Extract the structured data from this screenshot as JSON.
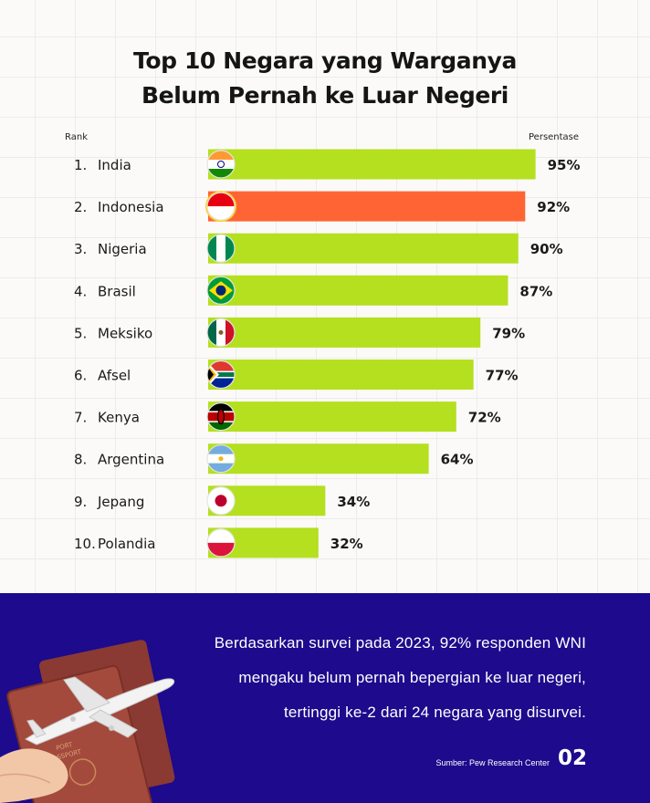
{
  "title_line1": "Top 10 Negara yang Warganya",
  "title_line2": "Belum Pernah ke Luar Negeri",
  "rank_header": "Rank",
  "pct_header": "Persentase",
  "chart_data": {
    "type": "bar",
    "orientation": "horizontal",
    "ranks": [
      "1.",
      "2.",
      "3.",
      "4.",
      "5.",
      "6.",
      "7.",
      "8.",
      "9.",
      "10."
    ],
    "categories": [
      "India",
      "Indonesia",
      "Nigeria",
      "Brasil",
      "Meksiko",
      "Afsel",
      "Kenya",
      "Argentina",
      "Jepang",
      "Polandia"
    ],
    "values": [
      95,
      92,
      90,
      87,
      79,
      77,
      72,
      64,
      34,
      32
    ],
    "value_labels": [
      "95%",
      "92%",
      "90%",
      "87%",
      "79%",
      "77%",
      "72%",
      "64%",
      "34%",
      "32%"
    ],
    "unit": "%",
    "bar_color": "#b4e01f",
    "highlight_color": "#ff6534",
    "highlight_category": "Indonesia",
    "flags": [
      "india-flag-icon",
      "indonesia-flag-icon",
      "nigeria-flag-icon",
      "brazil-flag-icon",
      "mexico-flag-icon",
      "south-africa-flag-icon",
      "kenya-flag-icon",
      "argentina-flag-icon",
      "japan-flag-icon",
      "poland-flag-icon"
    ]
  },
  "description_lines": [
    "Berdasarkan survei pada 2023, 92% responden WNI",
    "mengaku belum pernah bepergian ke luar negeri,",
    "tertinggi ke-2 dari 24 negara yang disurvei."
  ],
  "source": "Sumber: Pew Research Center",
  "page_number": "02",
  "passport_text": [
    "PORT",
    "PASSPORT"
  ],
  "colors": {
    "footer_bg": "#1d0a8c",
    "page_bg": "#fbfaf8"
  }
}
